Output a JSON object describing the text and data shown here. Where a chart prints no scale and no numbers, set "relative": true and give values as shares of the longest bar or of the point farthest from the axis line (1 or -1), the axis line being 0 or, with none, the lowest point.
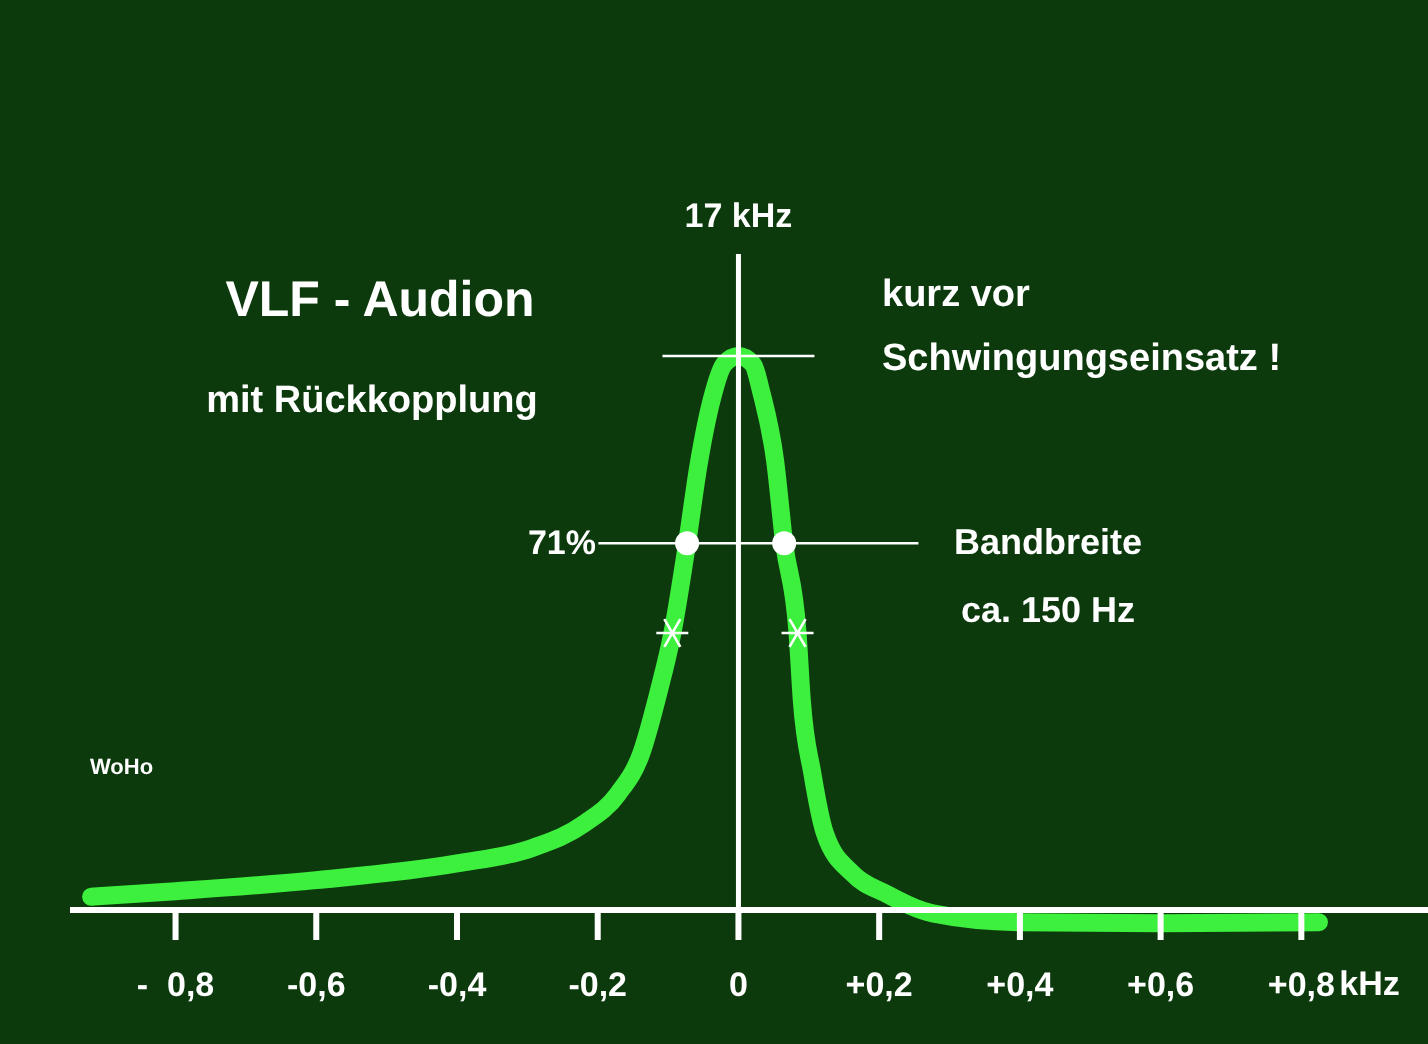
{
  "chart_data": {
    "type": "line",
    "title": "VLF - Audion",
    "subtitle": "mit Rückkopplung",
    "xlabel": "kHz",
    "relative": true,
    "xlim": [
      -0.95,
      0.98
    ],
    "xticks": [
      {
        "value": -0.8,
        "label": "-  0,8"
      },
      {
        "value": -0.6,
        "label": "-0,6"
      },
      {
        "value": -0.4,
        "label": "-0,4"
      },
      {
        "value": -0.2,
        "label": "-0,2"
      },
      0,
      {
        "value": 0.2,
        "label": "+0,2"
      },
      {
        "value": 0.4,
        "label": "+0,4"
      },
      {
        "value": 0.6,
        "label": "+0,6"
      },
      {
        "value": 0.8,
        "label": "+0,8"
      }
    ],
    "series": [
      {
        "type": "line",
        "color": "#3ef03e",
        "x": [
          -0.92,
          -0.8,
          -0.6,
          -0.4,
          -0.293,
          -0.219,
          -0.171,
          -0.138,
          -0.114,
          -0.094,
          -0.073,
          -0.057,
          -0.038,
          -0.02,
          0,
          0.02,
          0.033,
          0.052,
          0.065,
          0.084,
          0.09,
          0.105,
          0.123,
          0.162,
          0.209,
          0.276,
          0.4,
          0.6,
          0.825
        ],
        "values": [
          0.024,
          0.034,
          0.054,
          0.084,
          0.112,
          0.156,
          0.21,
          0.283,
          0.391,
          0.499,
          0.662,
          0.801,
          0.921,
          0.986,
          1,
          0.986,
          0.932,
          0.812,
          0.662,
          0.5,
          0.379,
          0.247,
          0.138,
          0.066,
          0.03,
          -0.006,
          -0.022,
          -0.024,
          -0.022
        ]
      },
      {
        "type": "scatter",
        "marker": "circle",
        "color": "#ffffff",
        "x": [
          -0.073,
          0.065
        ],
        "values": [
          0.662,
          0.662
        ]
      },
      {
        "type": "scatter",
        "marker": "cross",
        "color": "#ffffff",
        "x": [
          -0.094,
          0.084
        ],
        "values": [
          0.5,
          0.5
        ]
      }
    ],
    "ref_lines": [
      {
        "axis": "x",
        "value": 0,
        "label": "17 kHz",
        "color": "#ffffff"
      },
      {
        "axis": "y",
        "value": 1,
        "color": "#ffffff"
      },
      {
        "axis": "y",
        "value": 0.662,
        "color": "#ffffff"
      }
    ],
    "annotations": [
      "kurz vor\nSchwingungseinsatz !",
      "Bandbreite\nca. 150 Hz",
      "WoHo",
      "71%"
    ]
  }
}
